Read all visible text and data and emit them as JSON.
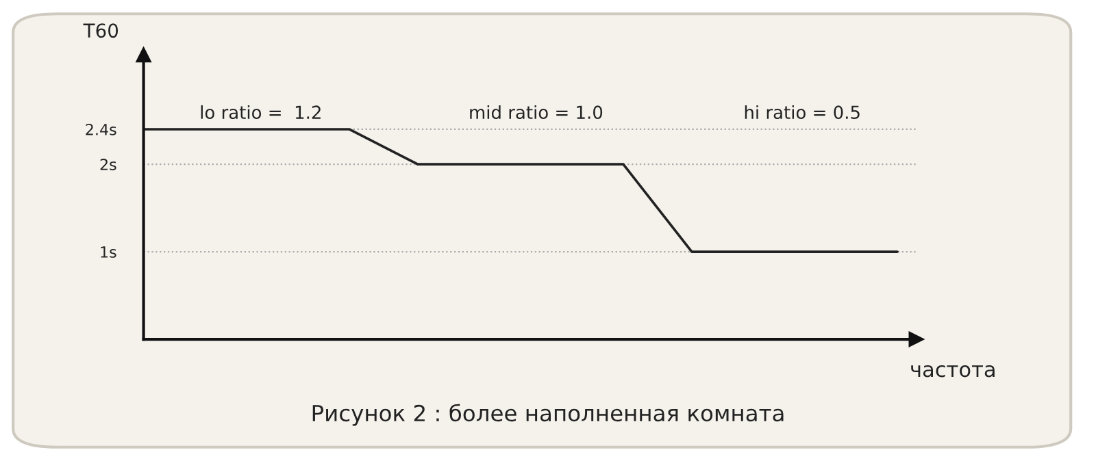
{
  "chart_data": {
    "type": "line",
    "ylabel": "T60",
    "xlabel": "частота",
    "categories": [
      null,
      null,
      null,
      null,
      null,
      null,
      null,
      null,
      null,
      null,
      null,
      null
    ],
    "series": [
      {
        "color": "#222222",
        "values": [
          2.4,
          2.4,
          2.4,
          2.4,
          2,
          2,
          2,
          2,
          1,
          1,
          1,
          1
        ]
      }
    ],
    "ylim": [
      0,
      3.25
    ],
    "yticks": [
      {
        "value": 1,
        "label": "1s"
      },
      {
        "value": 2,
        "label": "2s"
      },
      {
        "value": 2.4,
        "label": "2.4s"
      }
    ],
    "grid": "y",
    "tick_labels": "y",
    "line_style": "solid",
    "marker": "none",
    "annotations": [
      "lo ratio =  1.2",
      "mid ratio = 1.0",
      "hi ratio = 0.5",
      "Рисунок 2 : более наполненная комната"
    ]
  }
}
